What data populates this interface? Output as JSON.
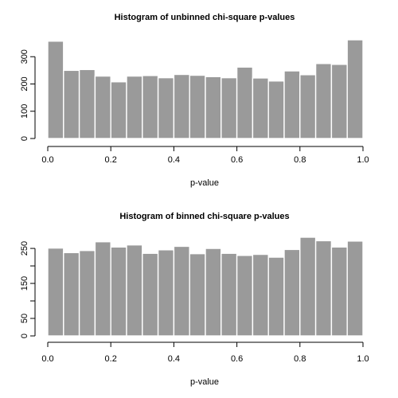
{
  "chart_data": [
    {
      "type": "bar",
      "title": "Histogram of unbinned chi-square p-values",
      "xlabel": "p-value",
      "ylabel": "",
      "bin_width": 0.05,
      "bin_edges": [
        0.0,
        0.05,
        0.1,
        0.15,
        0.2,
        0.25,
        0.3,
        0.35,
        0.4,
        0.45,
        0.5,
        0.55,
        0.6,
        0.65,
        0.7,
        0.75,
        0.8,
        0.85,
        0.9,
        0.95,
        1.0
      ],
      "values": [
        357,
        250,
        253,
        229,
        208,
        229,
        231,
        223,
        235,
        232,
        227,
        223,
        262,
        222,
        211,
        248,
        234,
        275,
        272,
        362
      ],
      "xlim": [
        0,
        1
      ],
      "ylim": [
        0,
        362
      ],
      "x_ticks": [
        0.0,
        0.2,
        0.4,
        0.6,
        0.8,
        1.0
      ],
      "x_tick_labels": [
        "0.0",
        "0.2",
        "0.4",
        "0.6",
        "0.8",
        "1.0"
      ],
      "y_ticks": [
        0,
        100,
        200,
        300
      ],
      "y_tick_labels": [
        "0",
        "100",
        "200",
        "300"
      ],
      "grid": false,
      "color": "#9a9a9a"
    },
    {
      "type": "bar",
      "title": "Histogram of binned chi-square p-values",
      "xlabel": "p-value",
      "ylabel": "",
      "bin_width": 0.05,
      "bin_edges": [
        0.0,
        0.05,
        0.1,
        0.15,
        0.2,
        0.25,
        0.3,
        0.35,
        0.4,
        0.45,
        0.5,
        0.55,
        0.6,
        0.65,
        0.7,
        0.75,
        0.8,
        0.85,
        0.9,
        0.95,
        1.0
      ],
      "values": [
        251,
        238,
        244,
        269,
        254,
        260,
        236,
        246,
        256,
        235,
        250,
        236,
        230,
        233,
        225,
        247,
        282,
        272,
        254,
        271
      ],
      "xlim": [
        0,
        1
      ],
      "ylim": [
        0,
        282
      ],
      "x_ticks": [
        0.0,
        0.2,
        0.4,
        0.6,
        0.8,
        1.0
      ],
      "x_tick_labels": [
        "0.0",
        "0.2",
        "0.4",
        "0.6",
        "0.8",
        "1.0"
      ],
      "y_ticks": [
        0,
        50,
        100,
        150,
        200,
        250
      ],
      "y_tick_labels": [
        "0",
        "50",
        "",
        "150",
        "",
        "250"
      ],
      "grid": false,
      "color": "#9a9a9a"
    }
  ]
}
